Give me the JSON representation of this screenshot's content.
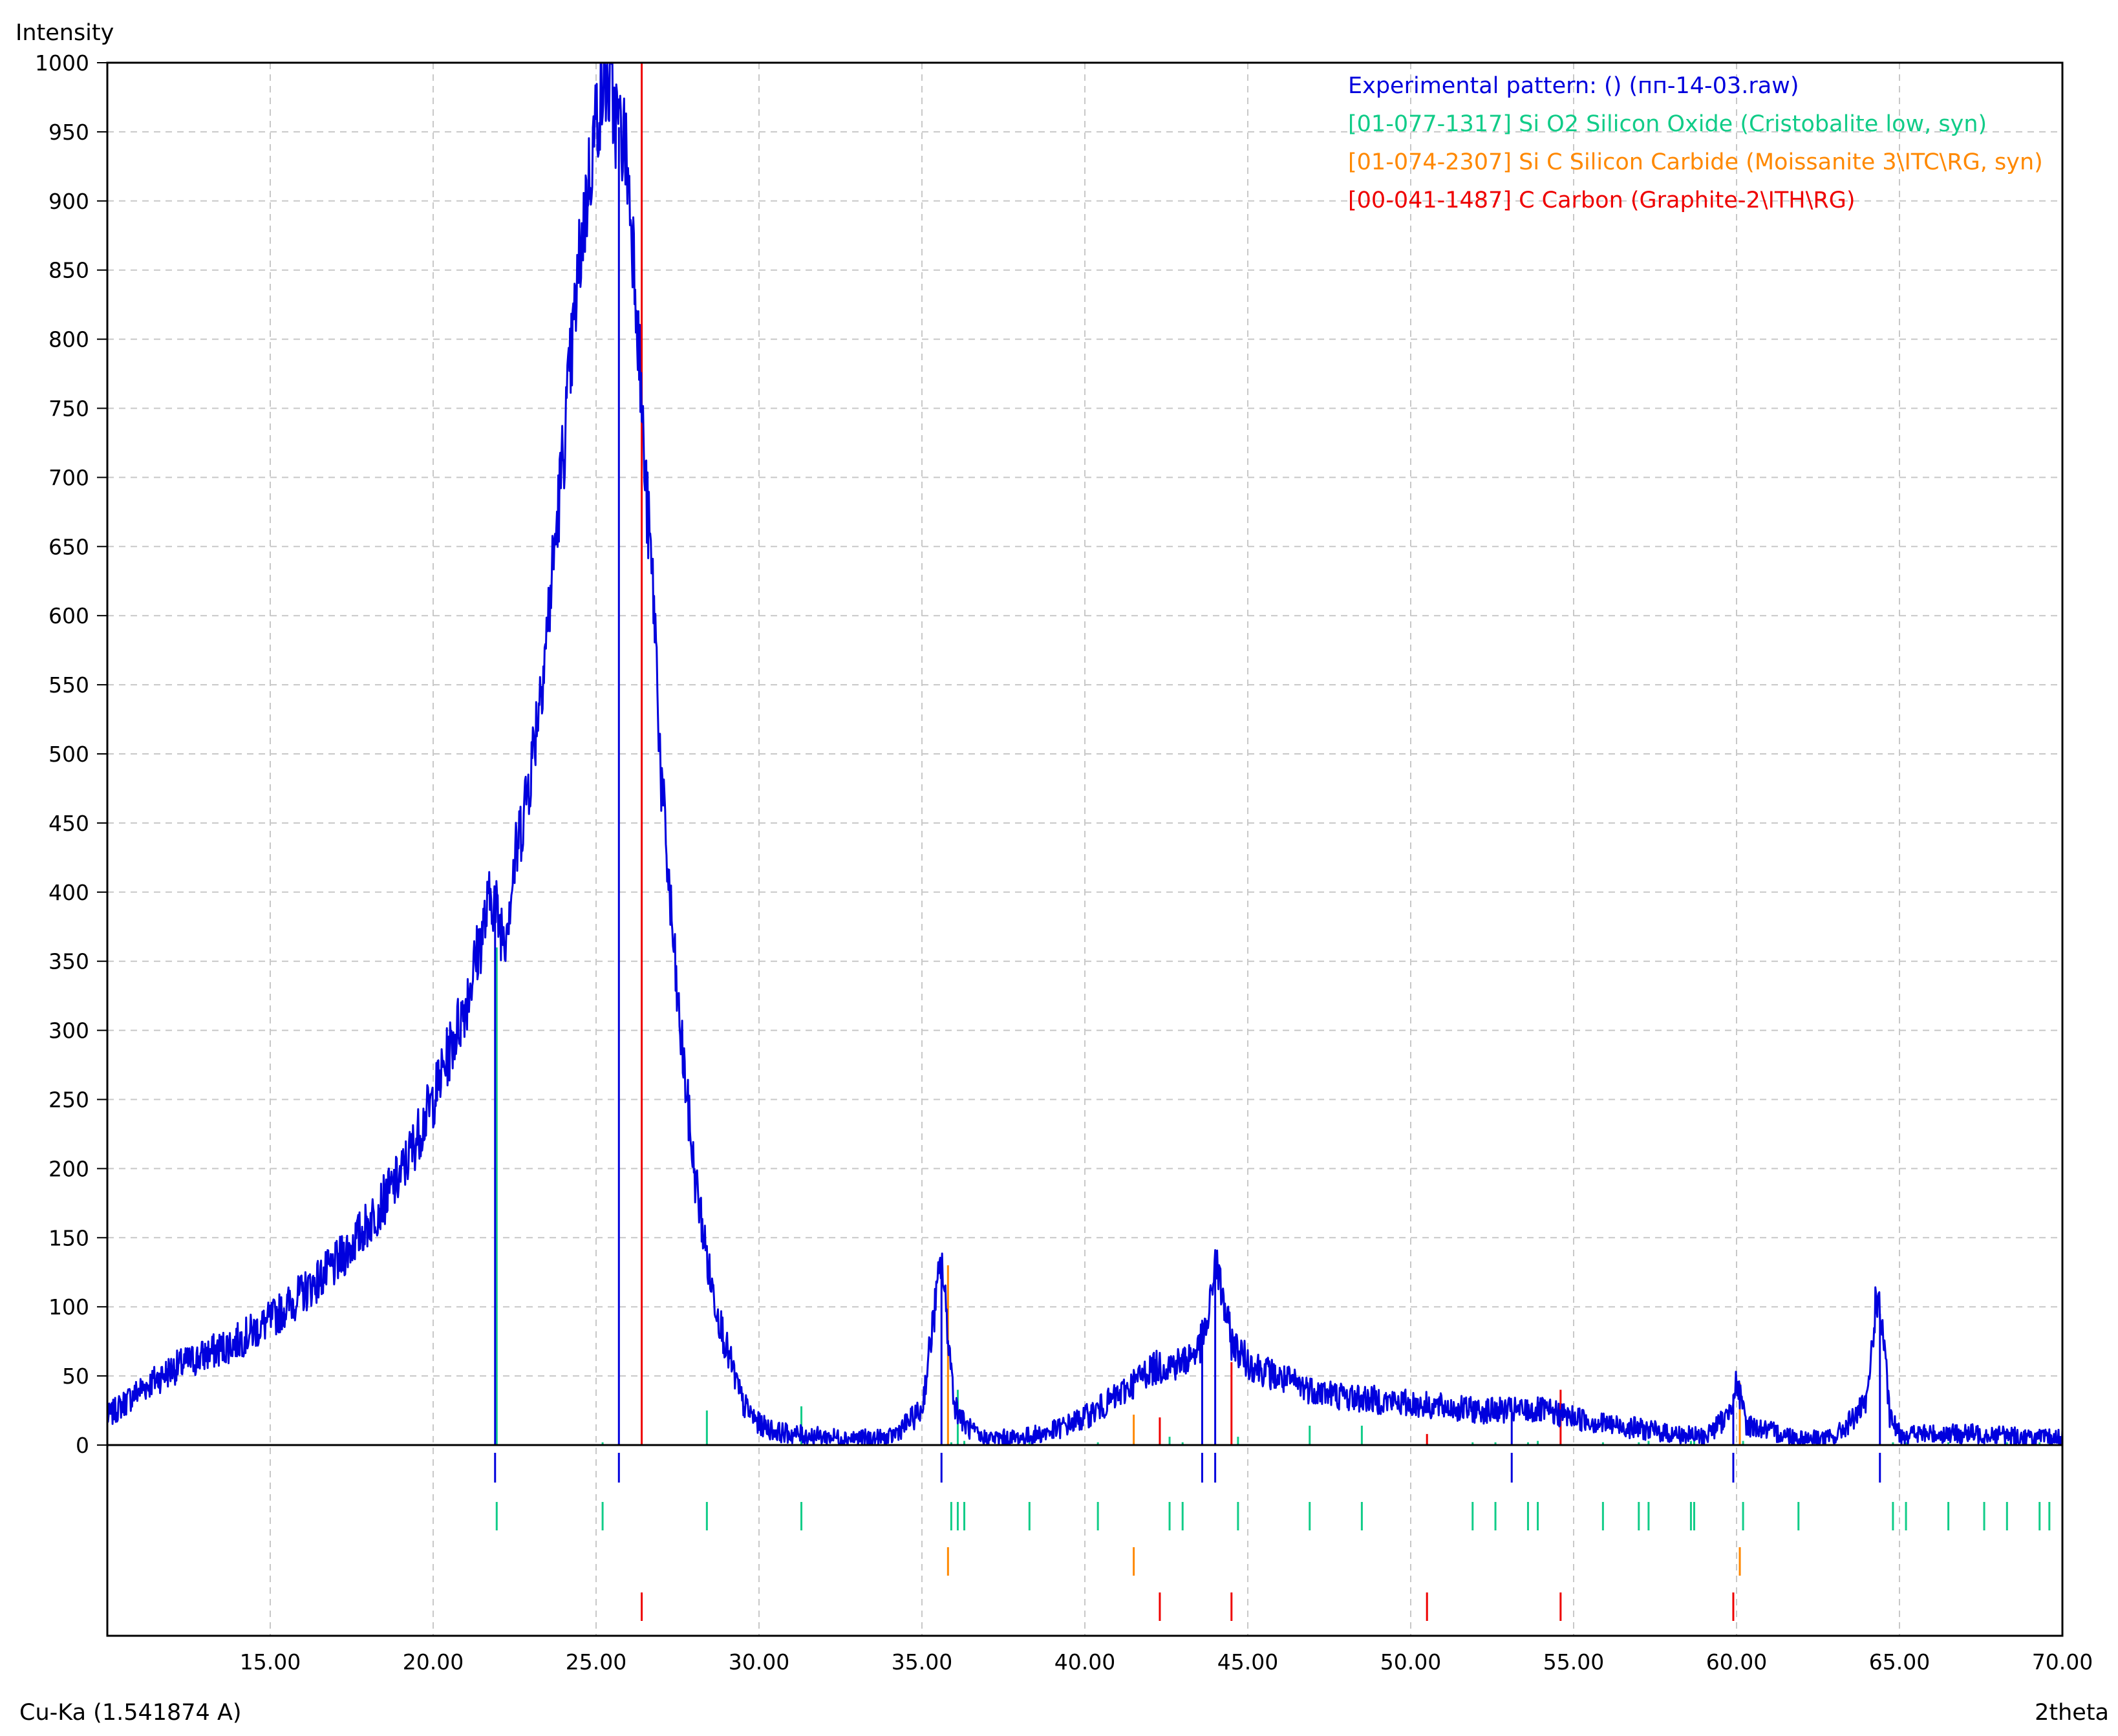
{
  "colors": {
    "experimental": "#0000dd",
    "cristobalite": "#11cc88",
    "moissanite": "#ff8800",
    "graphite": "#ee0000",
    "grid": "#c8c8c8",
    "frame": "#000000"
  },
  "chart_data": {
    "type": "line",
    "xlabel": "2theta",
    "ylabel": "Intensity",
    "footer_left": "Cu-Ka (1.541874 A)",
    "xlim": [
      10,
      70
    ],
    "ylim": [
      0,
      1000
    ],
    "xticks": [
      15,
      20,
      25,
      30,
      35,
      40,
      45,
      50,
      55,
      60,
      65,
      70
    ],
    "xtick_labels": [
      "15.00",
      "20.00",
      "25.00",
      "30.00",
      "35.00",
      "40.00",
      "45.00",
      "50.00",
      "55.00",
      "60.00",
      "65.00",
      "70.00"
    ],
    "yticks": [
      0,
      50,
      100,
      150,
      200,
      250,
      300,
      350,
      400,
      450,
      500,
      550,
      600,
      650,
      700,
      750,
      800,
      850,
      900,
      950,
      1000
    ],
    "ytick_labels": [
      "0",
      "50",
      "100",
      "150",
      "200",
      "250",
      "300",
      "350",
      "400",
      "450",
      "500",
      "550",
      "600",
      "650",
      "700",
      "750",
      "800",
      "850",
      "900",
      "950",
      "1000"
    ],
    "grid": true,
    "legend_position": "top-right",
    "legend": [
      "Experimental pattern:  () (пп-14-03.raw)",
      "[01-077-1317] Si O2 Silicon Oxide (Cristobalite low, syn)",
      "[01-074-2307] Si C Silicon Carbide (Moissanite 3\\ITC\\RG, syn)",
      "[00-041-1487] C Carbon (Graphite-2\\ITH\\RG)"
    ],
    "experimental_profile": {
      "x": [
        10,
        11,
        12,
        13,
        14,
        15,
        16,
        17,
        18,
        19,
        20,
        20.5,
        21,
        21.4,
        21.8,
        22.0,
        22.2,
        22.5,
        23,
        23.5,
        24,
        24.5,
        25,
        25.3,
        25.6,
        25.9,
        26.2,
        26.5,
        26.8,
        27,
        27.5,
        28,
        28.5,
        29,
        29.5,
        30,
        30.5,
        31,
        32,
        33,
        34,
        35,
        35.4,
        35.6,
        35.8,
        36.0,
        36.3,
        36.8,
        38,
        39,
        40,
        41,
        42,
        43,
        43.5,
        43.8,
        44.0,
        44.2,
        44.5,
        45,
        46,
        47,
        48,
        50,
        52,
        54,
        55,
        56,
        57,
        58,
        59,
        59.7,
        60.0,
        60.3,
        61,
        62,
        63,
        64,
        64.3,
        64.5,
        64.7,
        65,
        66,
        67,
        68,
        69,
        70
      ],
      "y": [
        20,
        40,
        55,
        65,
        75,
        90,
        110,
        130,
        160,
        195,
        250,
        285,
        320,
        360,
        400,
        380,
        370,
        420,
        490,
        590,
        720,
        860,
        960,
        990,
        960,
        940,
        850,
        700,
        600,
        480,
        320,
        200,
        120,
        70,
        30,
        15,
        10,
        8,
        6,
        5,
        5,
        25,
        100,
        135,
        80,
        30,
        15,
        5,
        5,
        10,
        20,
        35,
        55,
        60,
        70,
        90,
        135,
        110,
        75,
        60,
        48,
        40,
        35,
        30,
        25,
        25,
        20,
        15,
        12,
        8,
        6,
        20,
        45,
        15,
        10,
        5,
        5,
        30,
        110,
        80,
        20,
        8,
        8,
        8,
        8,
        5,
        5
      ]
    },
    "experimental_peaks": [
      21.9,
      25.7,
      35.6,
      43.6,
      44.0,
      53.1,
      59.9,
      64.4
    ],
    "series": [
      {
        "name": "[01-077-1317] Si O2 Silicon Oxide (Cristobalite low, syn)",
        "positions": [
          21.95,
          25.2,
          28.4,
          31.3,
          35.9,
          36.1,
          36.3,
          38.3,
          40.4,
          42.6,
          43.0,
          44.7,
          46.9,
          48.5,
          51.9,
          52.6,
          53.6,
          53.9,
          55.9,
          57.0,
          57.3,
          58.6,
          58.7,
          60.2,
          61.9,
          64.8,
          65.2,
          66.5,
          67.6,
          68.3,
          69.3,
          69.6
        ],
        "intensities": [
          360,
          2,
          25,
          28,
          2,
          40,
          3,
          2,
          2,
          6,
          2,
          6,
          14,
          14,
          2,
          2,
          2,
          3,
          2,
          2,
          3,
          3,
          3,
          3,
          2,
          2,
          2,
          2,
          2,
          2,
          2,
          2
        ]
      },
      {
        "name": "[01-074-2307] Si C Silicon Carbide (Moissanite 3\\ITC\\RG, syn)",
        "positions": [
          35.8,
          41.5,
          60.1
        ],
        "intensities": [
          130,
          22,
          45
        ]
      },
      {
        "name": "[00-041-1487] C Carbon (Graphite-2\\ITH\\RG)",
        "positions": [
          26.4,
          42.3,
          44.5,
          50.5,
          54.6,
          59.9
        ],
        "intensities": [
          1000,
          20,
          60,
          8,
          40,
          10
        ]
      }
    ]
  }
}
